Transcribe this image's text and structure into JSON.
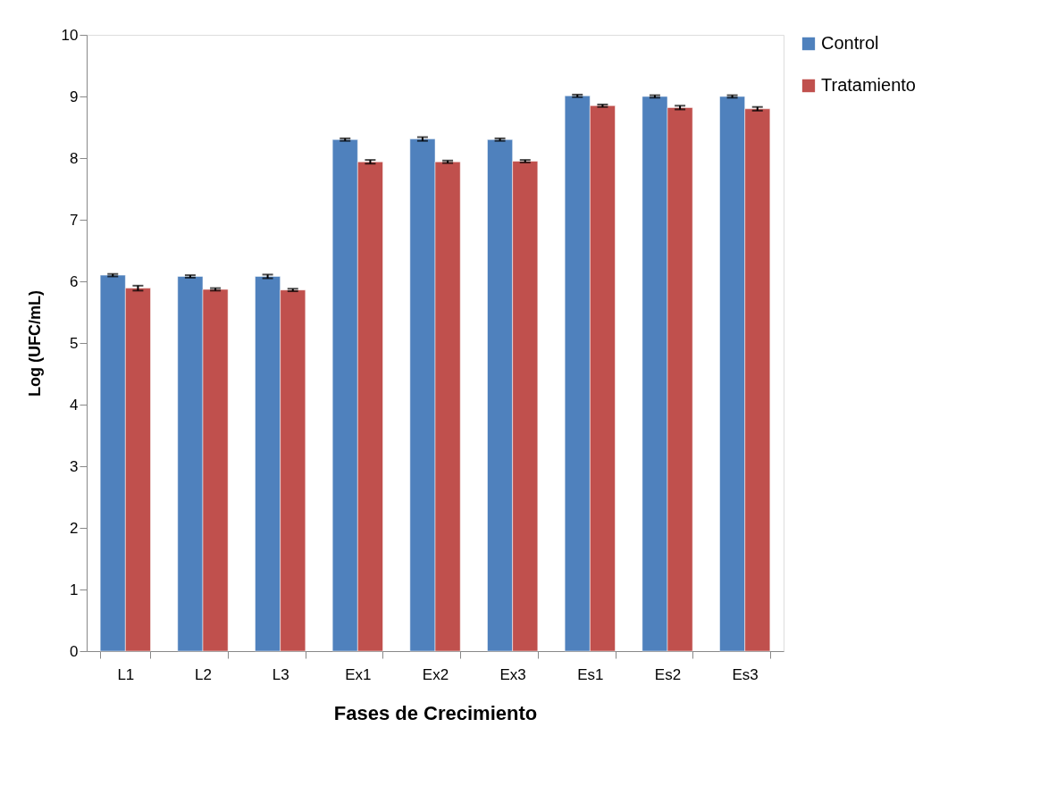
{
  "chart_data": {
    "type": "bar",
    "xlabel": "Fases de Crecimiento",
    "ylabel": "Log (UFC/mL)",
    "categories": [
      "L1",
      "L2",
      "L3",
      "Ex1",
      "Ex2",
      "Ex3",
      "Es1",
      "Es2",
      "Es3"
    ],
    "series": [
      {
        "name": "Control",
        "color": "#4f81bd",
        "values": [
          6.1,
          6.08,
          6.08,
          8.3,
          8.31,
          8.3,
          9.01,
          9.0,
          9.0
        ],
        "errors": [
          0.02,
          0.02,
          0.03,
          0.02,
          0.03,
          0.02,
          0.02,
          0.02,
          0.02
        ]
      },
      {
        "name": "Tratamiento",
        "color": "#c0504d",
        "values": [
          5.89,
          5.87,
          5.86,
          7.94,
          7.94,
          7.95,
          8.85,
          8.82,
          8.8
        ],
        "errors": [
          0.04,
          0.02,
          0.02,
          0.03,
          0.02,
          0.02,
          0.02,
          0.03,
          0.03
        ]
      }
    ],
    "ylim": [
      0,
      10
    ],
    "yticks": [
      0,
      1,
      2,
      3,
      4,
      5,
      6,
      7,
      8,
      9,
      10
    ],
    "grid": false,
    "legend": "right"
  }
}
